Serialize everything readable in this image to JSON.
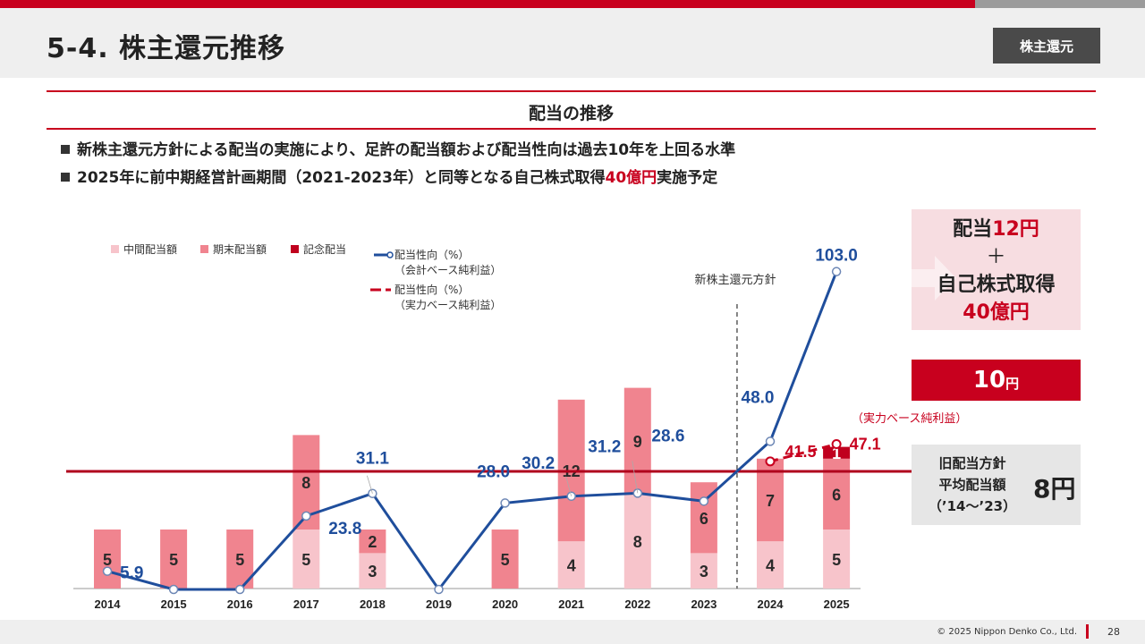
{
  "header": {
    "title": "5-4. 株主還元推移",
    "section_tag": "株主還元"
  },
  "band": {
    "title": "配当の推移"
  },
  "bullets": [
    {
      "text": "新株主還元方針による配当の実施により、足許の配当額および配当性向は過去10年を上回る水準"
    },
    {
      "pre": "2025年に前中期経営計画期間（2021-2023年）と同等となる自己株式取得",
      "highlight": "40億円",
      "post": "実施予定"
    }
  ],
  "side_boxes": {
    "plan": {
      "line1_pre": "配当",
      "line1_red": "12円",
      "plus": "＋",
      "line3": "自己株式取得",
      "line4_red": "40億円"
    },
    "threshold": {
      "value": "10",
      "unit": "円"
    },
    "old_policy": {
      "line1": "旧配当方針",
      "line2": "平均配当額",
      "line3": "（’14～’23）",
      "value": "8円"
    }
  },
  "footer": {
    "copyright": "© 2025 Nippon Denko Co., Ltd.",
    "page": "28"
  },
  "colors": {
    "interim": "#f7c4cb",
    "year_end": "#f0848f",
    "commemorative": "#c0001e",
    "line_accounting": "#1f4e9c",
    "line_actual": "#c8001e",
    "threshold": "#b0001c"
  },
  "chart_data": {
    "type": "bar",
    "categories": [
      "2014",
      "2015",
      "2016",
      "2017",
      "2018",
      "2019",
      "2020",
      "2021",
      "2022",
      "2023",
      "2024",
      "2025"
    ],
    "series": [
      {
        "name": "中間配当額",
        "values": [
          0,
          0,
          0,
          5,
          3,
          0,
          0,
          4,
          8,
          3,
          4,
          5
        ]
      },
      {
        "name": "期末配当額",
        "values": [
          5,
          5,
          5,
          8,
          2,
          0,
          5,
          12,
          9,
          6,
          7,
          6
        ]
      },
      {
        "name": "記念配当",
        "values": [
          0,
          0,
          0,
          0,
          0,
          0,
          0,
          0,
          0,
          0,
          0,
          1
        ]
      }
    ],
    "payout_ratio_accounting": {
      "legend": [
        "配当性向（%）",
        "（会計ベース純利益）"
      ],
      "values": [
        5.9,
        0,
        0,
        23.8,
        31.1,
        0,
        28.0,
        30.2,
        31.2,
        28.6,
        48.0,
        103.0
      ],
      "labels": [
        "5.9",
        "",
        "",
        "23.8",
        "31.1",
        "",
        "28.0",
        "30.2",
        "31.2",
        "28.6",
        "48.0",
        "103.0"
      ]
    },
    "payout_ratio_actual": {
      "legend": [
        "配当性向（%）",
        "（実力ベース純利益）"
      ],
      "x": [
        "2024",
        "2025"
      ],
      "values": [
        41.5,
        47.1
      ],
      "labels": [
        "41.5",
        "47.1"
      ]
    },
    "threshold_yen": 10,
    "policy_marker": {
      "after": "2023",
      "label": "新株主還元方針"
    },
    "annotation": "（実力ベース純利益）",
    "legend_placement": "top-left"
  }
}
